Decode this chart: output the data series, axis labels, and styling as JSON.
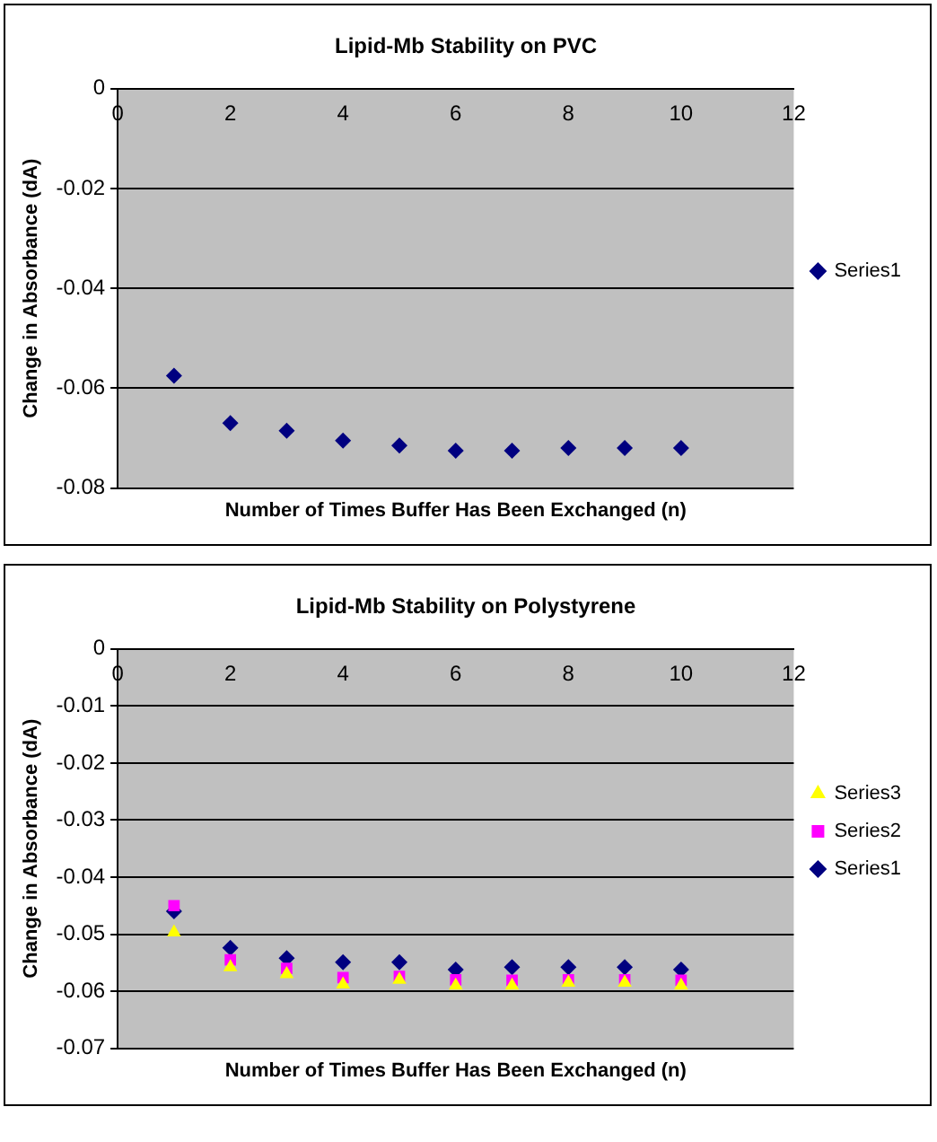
{
  "chart_data": [
    {
      "type": "scatter",
      "title": "Lipid-Mb Stability on PVC",
      "xlabel": "Number of Times Buffer Has Been Exchanged (n)",
      "ylabel": "Change in Absorbance (dA)",
      "x": [
        1,
        2,
        3,
        4,
        5,
        6,
        7,
        8,
        9,
        10
      ],
      "xlim": [
        0,
        12
      ],
      "xticks": [
        0,
        2,
        4,
        6,
        8,
        10,
        12
      ],
      "ylim": [
        -0.08,
        0
      ],
      "yticks": [
        -0.08,
        -0.06,
        -0.04,
        -0.02,
        0
      ],
      "grid": "y",
      "legend": "right",
      "series": [
        {
          "name": "Series1",
          "color": "#000080",
          "marker": "diamond",
          "values": [
            -0.0575,
            -0.067,
            -0.0685,
            -0.0705,
            -0.0715,
            -0.0725,
            -0.0725,
            -0.072,
            -0.072,
            -0.072
          ]
        }
      ]
    },
    {
      "type": "scatter",
      "title": "Lipid-Mb Stability on Polystyrene",
      "xlabel": "Number of Times Buffer Has Been Exchanged (n)",
      "ylabel": "Change in Absorbance (dA)",
      "x": [
        1,
        2,
        3,
        4,
        5,
        6,
        7,
        8,
        9,
        10
      ],
      "xlim": [
        0,
        12
      ],
      "xticks": [
        0,
        2,
        4,
        6,
        8,
        10,
        12
      ],
      "ylim": [
        -0.07,
        0
      ],
      "yticks": [
        -0.07,
        -0.06,
        -0.05,
        -0.04,
        -0.03,
        -0.02,
        -0.01,
        0
      ],
      "grid": "y",
      "legend": "right",
      "series": [
        {
          "name": "Series1",
          "color": "#000080",
          "marker": "diamond",
          "values": [
            -0.046,
            -0.0524,
            -0.0542,
            -0.0549,
            -0.0549,
            -0.0562,
            -0.0558,
            -0.0558,
            -0.0558,
            -0.0562
          ]
        },
        {
          "name": "Series2",
          "color": "#ff00ff",
          "marker": "square",
          "values": [
            -0.045,
            -0.0545,
            -0.056,
            -0.0576,
            -0.0574,
            -0.058,
            -0.0581,
            -0.058,
            -0.058,
            -0.0581
          ]
        },
        {
          "name": "Series3",
          "color": "#ffff00",
          "marker": "triangle",
          "values": [
            -0.0497,
            -0.0558,
            -0.057,
            -0.0588,
            -0.058,
            -0.059,
            -0.059,
            -0.0585,
            -0.0585,
            -0.059
          ]
        }
      ]
    }
  ]
}
